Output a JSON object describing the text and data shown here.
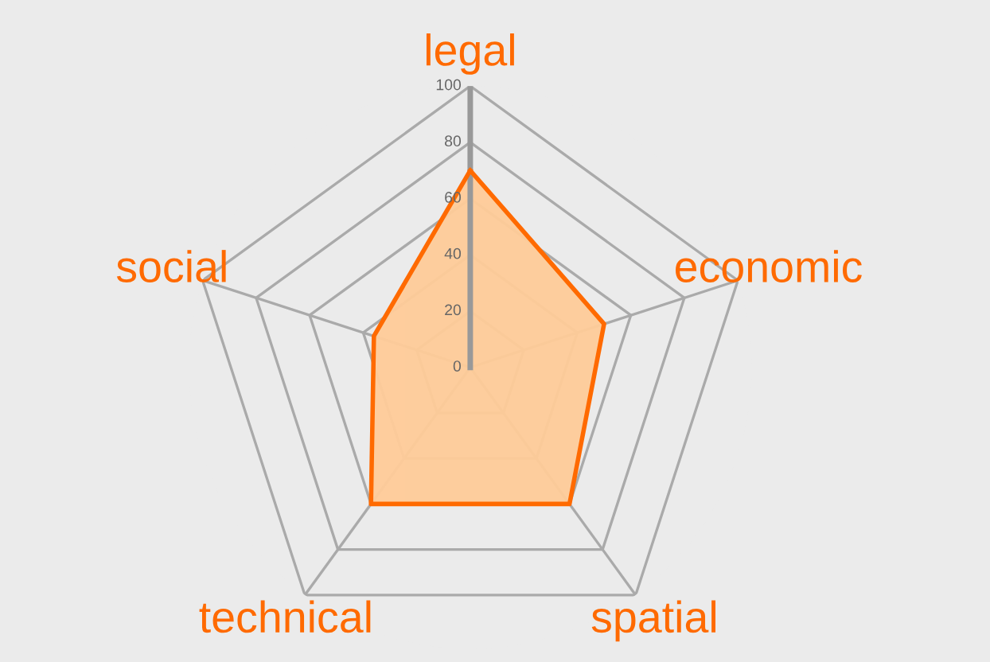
{
  "chart_data": {
    "type": "radar",
    "categories": [
      "legal",
      "economic",
      "spatial",
      "technical",
      "social"
    ],
    "series": [
      {
        "color": "#ff6a00",
        "values": [
          70,
          50,
          60,
          60,
          36
        ]
      }
    ],
    "ylim": [
      0,
      100
    ],
    "yticks": [
      0,
      20,
      40,
      60,
      80,
      100
    ],
    "grid": true
  }
}
